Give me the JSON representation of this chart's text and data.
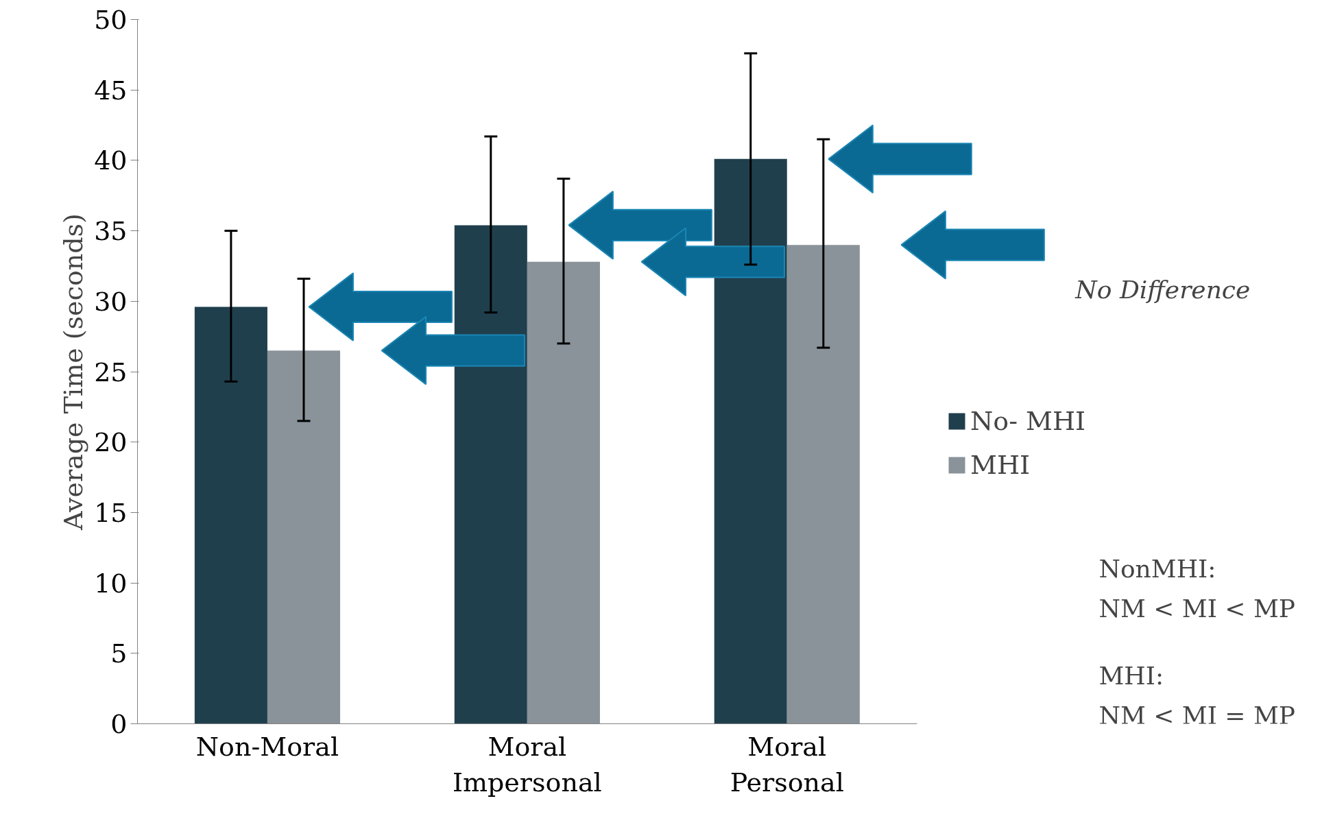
{
  "chart_data": {
    "type": "bar",
    "ylabel": "Average Time (seconds)",
    "categories": [
      "Non-Moral",
      "Moral\nImpersonal",
      "Moral\nPersonal"
    ],
    "series": [
      {
        "name": "No- MHI",
        "color": "#203f4d",
        "values": [
          29.6,
          35.4,
          40.1
        ],
        "errors": [
          [
            24.3,
            35.0
          ],
          [
            29.2,
            41.7
          ],
          [
            32.6,
            47.6
          ]
        ]
      },
      {
        "name": "MHI",
        "color": "#8a9399",
        "values": [
          26.5,
          32.8,
          34.0
        ],
        "errors": [
          [
            21.5,
            31.6
          ],
          [
            27.0,
            38.7
          ],
          [
            26.7,
            41.5
          ]
        ]
      }
    ],
    "ylim": [
      0,
      50
    ],
    "yticks": [
      0,
      5,
      10,
      15,
      20,
      25,
      30,
      35,
      40,
      45,
      50
    ],
    "grid": false,
    "legend": "right",
    "annotations": [
      "No Difference",
      "NonMHI:\nNM < MI < MP",
      "MHI:\nNM < MI = MP"
    ]
  }
}
